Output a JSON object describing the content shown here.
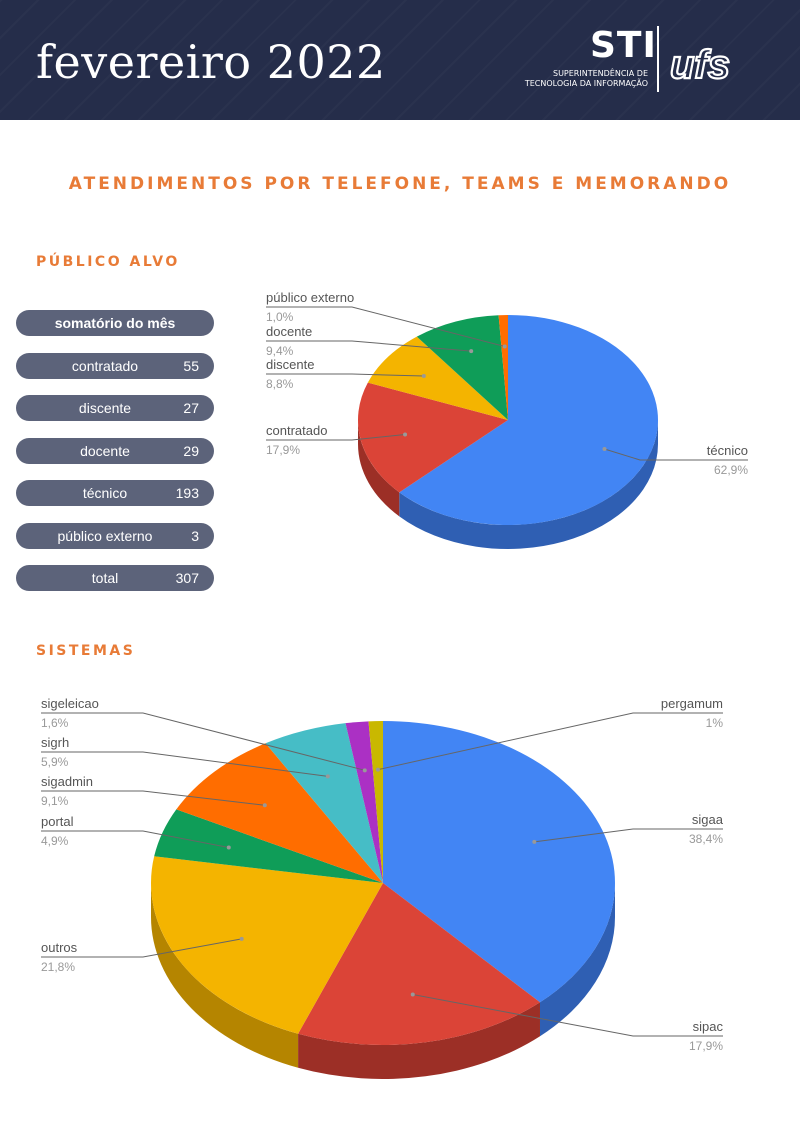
{
  "header": {
    "month_title": "fevereiro 2022",
    "logo_sti": "STI",
    "logo_sub_line1": "SUPERINTENDÊNCIA DE",
    "logo_sub_line2": "TECNOLOGIA DA INFORMAÇÃO",
    "logo_ufs": "ufs",
    "background_color": "#252d4a"
  },
  "main_title": "ATENDIMENTOS POR TELEFONE, TEAMS E MEMORANDO",
  "sections": {
    "publico_title": "PÚBLICO ALVO",
    "sistemas_title": "SISTEMAS"
  },
  "summary": {
    "header": "somatório do mês",
    "rows": [
      {
        "label": "contratado",
        "value": "55"
      },
      {
        "label": "discente",
        "value": "27"
      },
      {
        "label": "docente",
        "value": "29"
      },
      {
        "label": "técnico",
        "value": "193"
      },
      {
        "label": "público externo",
        "value": "3"
      },
      {
        "label": "total",
        "value": "307"
      }
    ]
  },
  "colors": {
    "accent": "#e87b37",
    "pill": "#5c637a",
    "label_text": "#555555",
    "pct_text": "#999999"
  },
  "chart_data": [
    {
      "type": "pie",
      "style": "3d",
      "title": "",
      "slices": [
        {
          "label": "técnico",
          "value": 62.9,
          "display": "62,9%",
          "color": "#4285f4",
          "side": "#2f5fb3",
          "label_side": "right"
        },
        {
          "label": "contratado",
          "value": 17.9,
          "display": "17,9%",
          "color": "#db4437",
          "side": "#9c2f26",
          "label_side": "left"
        },
        {
          "label": "discente",
          "value": 8.8,
          "display": "8,8%",
          "color": "#f4b400",
          "side": "#b58500",
          "label_side": "left"
        },
        {
          "label": "docente",
          "value": 9.4,
          "display": "9,4%",
          "color": "#0f9d58",
          "side": "#0a6e3e",
          "label_side": "left"
        },
        {
          "label": "público externo",
          "value": 1.0,
          "display": "1,0%",
          "color": "#ff6d00",
          "side": "#b34c00",
          "label_side": "left"
        }
      ]
    },
    {
      "type": "pie",
      "style": "3d",
      "title": "",
      "slices": [
        {
          "label": "sigaa",
          "value": 38.4,
          "display": "38,4%",
          "color": "#4285f4",
          "side": "#2f5fb3",
          "label_side": "right"
        },
        {
          "label": "sipac",
          "value": 17.9,
          "display": "17,9%",
          "color": "#db4437",
          "side": "#9c2f26",
          "label_side": "right"
        },
        {
          "label": "outros",
          "value": 21.8,
          "display": "21,8%",
          "color": "#f4b400",
          "side": "#b58500",
          "label_side": "left"
        },
        {
          "label": "portal",
          "value": 4.9,
          "display": "4,9%",
          "color": "#0f9d58",
          "side": "#0a6e3e",
          "label_side": "left"
        },
        {
          "label": "sigadmin",
          "value": 9.1,
          "display": "9,1%",
          "color": "#ff6d00",
          "side": "#b34c00",
          "label_side": "left"
        },
        {
          "label": "sigrh",
          "value": 5.9,
          "display": "5,9%",
          "color": "#46bdc6",
          "side": "#2f8a91",
          "label_side": "left"
        },
        {
          "label": "sigeleicao",
          "value": 1.6,
          "display": "1,6%",
          "color": "#ab30c4",
          "side": "#78208a",
          "label_side": "left"
        },
        {
          "label": "pergamum",
          "value": 1.0,
          "display": "1%",
          "color": "#c9b800",
          "side": "#8f8300",
          "label_side": "right"
        }
      ]
    }
  ]
}
